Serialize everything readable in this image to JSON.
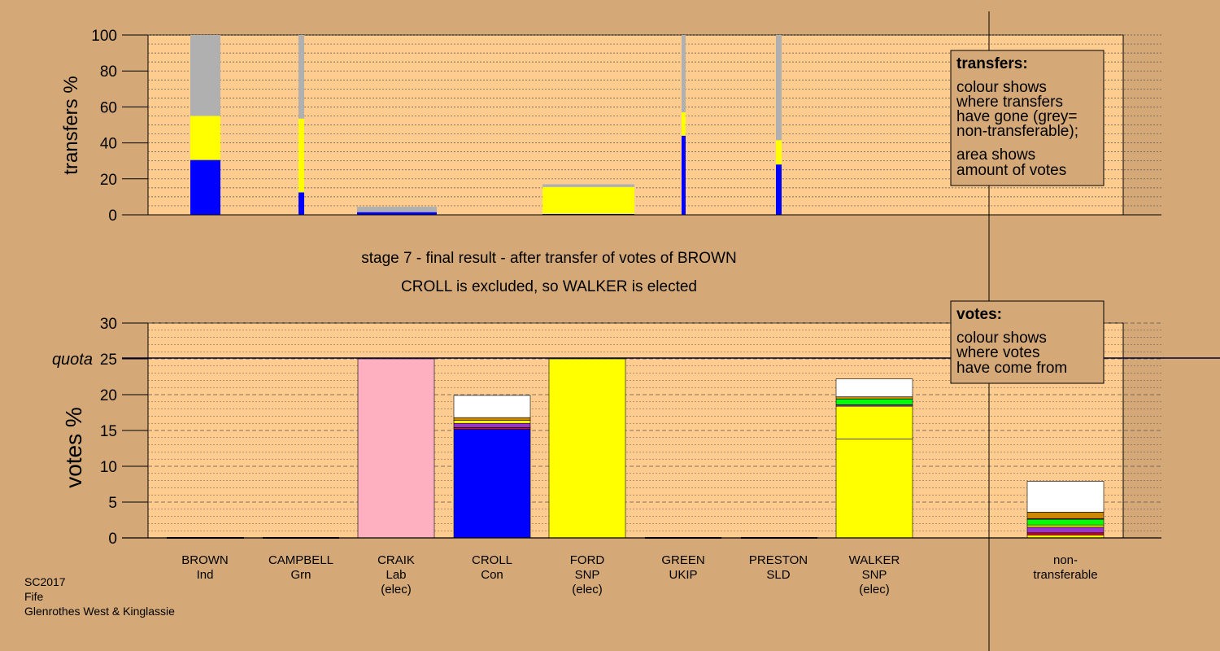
{
  "chart_data": {
    "type": "bar",
    "title": "stage 7 - final result - after transfer of votes of BROWN",
    "subtitle": "CROLL is excluded, so WALKER is elected",
    "quota_label": "quota",
    "quota": 25,
    "candidates": [
      {
        "name": "BROWN",
        "party": "Ind",
        "status": ""
      },
      {
        "name": "CAMPBELL",
        "party": "Grn",
        "status": ""
      },
      {
        "name": "CRAIK",
        "party": "Lab",
        "status": "(elec)"
      },
      {
        "name": "CROLL",
        "party": "Con",
        "status": ""
      },
      {
        "name": "FORD",
        "party": "SNP",
        "status": "(elec)"
      },
      {
        "name": "GREEN",
        "party": "UKIP",
        "status": ""
      },
      {
        "name": "PRESTON",
        "party": "SLD",
        "status": ""
      },
      {
        "name": "WALKER",
        "party": "SNP",
        "status": "(elec)"
      }
    ],
    "nontransferable": {
      "line1": "non-",
      "line2": "transferable"
    },
    "transfers_chart": {
      "ylabel": "transfers %",
      "ylim": [
        0,
        100
      ],
      "ticks": [
        0,
        20,
        40,
        60,
        80,
        100
      ],
      "bars": [
        {
          "candidate": "BROWN",
          "segments": [
            {
              "color": "#0000ff",
              "value": 30.5
            },
            {
              "color": "#ffff00",
              "value": 24.5
            },
            {
              "color": "#b0b0b0",
              "value": 45
            }
          ]
        },
        {
          "candidate": "CAMPBELL",
          "segments": [
            {
              "color": "#0000ff",
              "value": 12.5
            },
            {
              "color": "#ffff00",
              "value": 41
            },
            {
              "color": "#b0b0b0",
              "value": 46.5
            }
          ]
        },
        {
          "candidate": "CRAIK",
          "segments": [
            {
              "color": "#0000ff",
              "value": 1.5
            },
            {
              "color": "#b0b0b0",
              "value": 3
            }
          ]
        },
        {
          "candidate": "FORD",
          "segments": [
            {
              "color": "#0000ff",
              "value": 0.5
            },
            {
              "color": "#ffff00",
              "value": 15
            },
            {
              "color": "#b0b0b0",
              "value": 1.5
            }
          ]
        },
        {
          "candidate": "GREEN",
          "segments": [
            {
              "color": "#0000ff",
              "value": 44
            },
            {
              "color": "#ffff00",
              "value": 13
            },
            {
              "color": "#b0b0b0",
              "value": 43
            }
          ]
        },
        {
          "candidate": "PRESTON",
          "segments": [
            {
              "color": "#0000ff",
              "value": 28
            },
            {
              "color": "#ffff00",
              "value": 13.5
            },
            {
              "color": "#b0b0b0",
              "value": 58.5
            }
          ]
        }
      ]
    },
    "votes_chart": {
      "ylabel": "votes %",
      "ylim": [
        0,
        30
      ],
      "ticks": [
        0,
        5,
        10,
        15,
        20,
        25,
        30
      ],
      "bars": [
        {
          "candidate": "BROWN",
          "segments": []
        },
        {
          "candidate": "CAMPBELL",
          "segments": []
        },
        {
          "candidate": "CRAIK",
          "segments": [
            {
              "color": "#ffb0c0",
              "value": 25
            }
          ]
        },
        {
          "candidate": "CROLL",
          "segments": [
            {
              "color": "#0000ff",
              "value": 15.2
            },
            {
              "color": "#ff0000",
              "value": 0.2
            },
            {
              "color": "#9933cc",
              "value": 0.6
            },
            {
              "color": "#ffff00",
              "value": 0.4
            },
            {
              "color": "#cc8800",
              "value": 0.4
            },
            {
              "color": "#ffffff",
              "value": 3.1
            }
          ]
        },
        {
          "candidate": "FORD",
          "segments": [
            {
              "color": "#ffff00",
              "value": 25
            }
          ]
        },
        {
          "candidate": "GREEN",
          "segments": []
        },
        {
          "candidate": "PRESTON",
          "segments": []
        },
        {
          "candidate": "WALKER",
          "segments": [
            {
              "color": "#ffff00",
              "value": 13.8
            },
            {
              "color": "#ffff00",
              "value": 4.6
            },
            {
              "color": "#9933cc",
              "value": 0.2
            },
            {
              "color": "#00ff00",
              "value": 0.8
            },
            {
              "color": "#cc8800",
              "value": 0.3
            },
            {
              "color": "#ffffff",
              "value": 2.5
            }
          ]
        },
        {
          "candidate": "non-transferable",
          "segments": [
            {
              "color": "#ffff00",
              "value": 0.4
            },
            {
              "color": "#ff0000",
              "value": 0.3
            },
            {
              "color": "#9933cc",
              "value": 0.8
            },
            {
              "color": "#ffff00",
              "value": 0.3
            },
            {
              "color": "#00ff00",
              "value": 0.8
            },
            {
              "color": "#ff0000",
              "value": 0.1
            },
            {
              "color": "#cc8800",
              "value": 0.9
            },
            {
              "color": "#ffffff",
              "value": 4.3
            }
          ]
        }
      ]
    }
  },
  "legends": {
    "transfers": {
      "title": "transfers:",
      "lines": [
        "colour shows",
        "where transfers",
        "have gone (grey=",
        "non-transferable);",
        "area shows",
        "amount of votes"
      ]
    },
    "votes": {
      "title": "votes:",
      "lines": [
        "colour shows",
        "where votes",
        "have come from"
      ]
    }
  },
  "footer": [
    "SC2017",
    "Fife",
    "Glenrothes West & Kinglassie"
  ],
  "colors": {
    "background": "#d4a977",
    "plot_background": "#ffcc90",
    "quota_line": "#000033"
  }
}
